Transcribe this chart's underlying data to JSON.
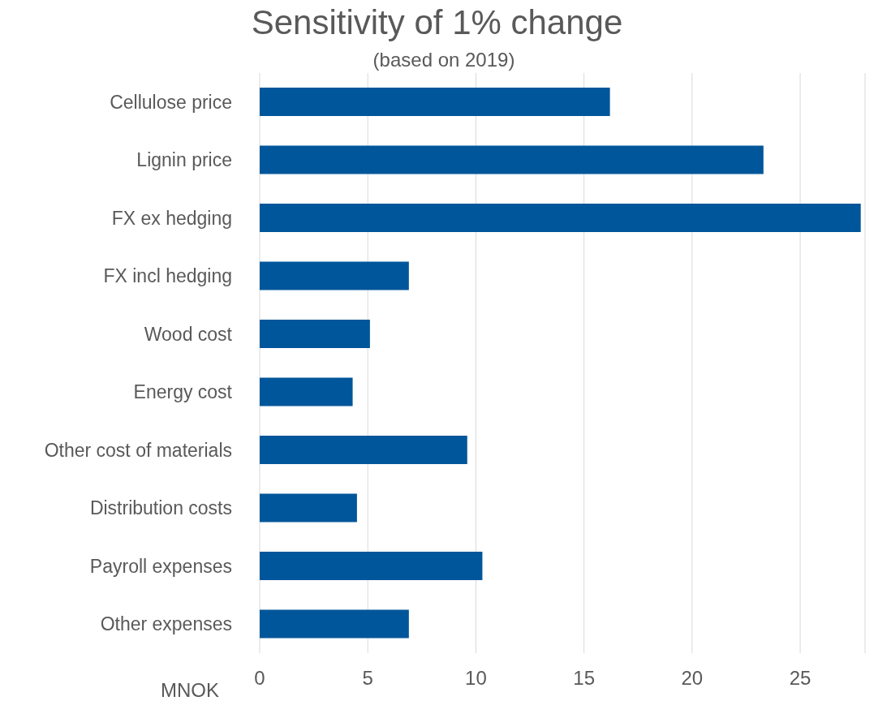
{
  "chart_data": {
    "type": "bar",
    "orientation": "horizontal",
    "title": "Sensitivity of 1% change",
    "subtitle": "(based on 2019)",
    "xlabel": "MNOK",
    "categories": [
      "Cellulose price",
      "Lignin price",
      "FX ex hedging",
      "FX incl hedging",
      "Wood cost",
      "Energy cost",
      "Other cost of materials",
      "Distribution costs",
      "Payroll expenses",
      "Other expenses"
    ],
    "values": [
      16.2,
      23.3,
      27.8,
      6.9,
      5.1,
      4.3,
      9.6,
      4.5,
      10.3,
      6.9
    ],
    "color": "#00569a",
    "xlim": [
      0,
      28
    ],
    "xticks": [
      0,
      5,
      10,
      15,
      20,
      25
    ],
    "grid": "x"
  }
}
